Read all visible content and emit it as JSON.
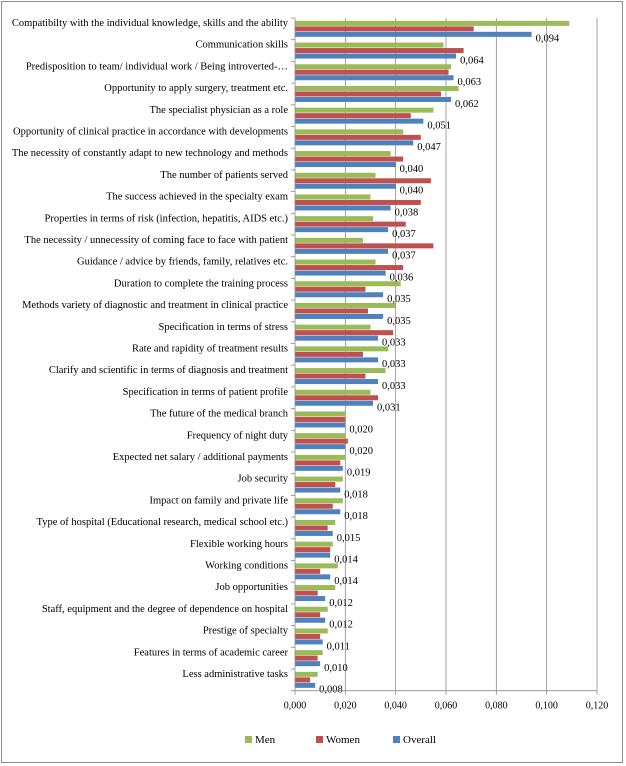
{
  "chart_data": {
    "type": "bar",
    "orientation": "horizontal",
    "categories": [
      "Compatibilty with the individual knowledge, skills and the ability",
      "Communication skills",
      "Predisposition to team/ individual work / Being introverted-…",
      "Opportunity to apply surgery, treatment etc.",
      "The specialist physician as a role",
      "Opportunity of clinical practice in accordance with developments",
      "The necessity of constantly adapt to new technology and methods",
      "The number of patients served",
      "The success achieved in the specialty exam",
      "Properties in terms of risk (infection, hepatitis, AIDS etc.)",
      "The necessity / unnecessity of coming face to face with patient",
      "Guidance / advice by friends, family, relatives etc.",
      "Duration to complete the training process",
      "Methods variety of diagnostic and treatment in clinical practice",
      "Specification in terms of stress",
      "Rate and rapidity of treatment results",
      "Clarify and scientific in terms of diagnosis and treatment",
      "Specification in terms of patient profile",
      "The future of the medical branch",
      "Frequency of night duty",
      "Expected net salary / additional payments",
      "Job security",
      "Impact on family and private life",
      "Type of hospital (Educational research, medical school etc.)",
      "Flexible working hours",
      "Working conditions",
      "Job opportunities",
      "Staff, equipment and the degree of dependence on hospital",
      "Prestige of specialty",
      "Features in terms of academic career",
      "Less administrative tasks"
    ],
    "series": [
      {
        "name": "Men",
        "color": "#9bbb59",
        "values": [
          0.109,
          0.059,
          0.062,
          0.065,
          0.055,
          0.043,
          0.038,
          0.032,
          0.03,
          0.031,
          0.027,
          0.032,
          0.042,
          0.04,
          0.03,
          0.037,
          0.036,
          0.03,
          0.02,
          0.02,
          0.02,
          0.019,
          0.019,
          0.016,
          0.015,
          0.017,
          0.016,
          0.013,
          0.013,
          0.011,
          0.009
        ]
      },
      {
        "name": "Women",
        "color": "#c0504d",
        "values": [
          0.071,
          0.067,
          0.061,
          0.058,
          0.046,
          0.05,
          0.043,
          0.054,
          0.05,
          0.044,
          0.055,
          0.043,
          0.028,
          0.029,
          0.039,
          0.027,
          0.028,
          0.033,
          0.02,
          0.021,
          0.018,
          0.016,
          0.015,
          0.013,
          0.014,
          0.01,
          0.009,
          0.01,
          0.01,
          0.009,
          0.006
        ]
      },
      {
        "name": "Overall",
        "color": "#4f81bd",
        "values": [
          0.094,
          0.064,
          0.063,
          0.062,
          0.051,
          0.047,
          0.04,
          0.04,
          0.038,
          0.037,
          0.037,
          0.036,
          0.035,
          0.035,
          0.033,
          0.033,
          0.033,
          0.031,
          0.02,
          0.02,
          0.019,
          0.018,
          0.018,
          0.015,
          0.014,
          0.014,
          0.012,
          0.012,
          0.011,
          0.01,
          0.008
        ]
      }
    ],
    "data_labels": [
      "0,094",
      "0,064",
      "0,063",
      "0,062",
      "0,051",
      "0,047",
      "0,040",
      "0,040",
      "0,038",
      "0,037",
      "0,037",
      "0,036",
      "0,035",
      "0,035",
      "0,033",
      "0,033",
      "0,033",
      "0,031",
      "0,020",
      "0,020",
      "0,019",
      "0,018",
      "0,018",
      "0,015",
      "0,014",
      "0,014",
      "0,012",
      "0,012",
      "0,011",
      "0,010",
      "0,008"
    ],
    "xlim": [
      0,
      0.12
    ],
    "ticks": [
      0,
      0.02,
      0.04,
      0.06,
      0.08,
      0.1,
      0.12
    ],
    "tick_labels": [
      "0,000",
      "0,020",
      "0,040",
      "0,060",
      "0,080",
      "0,100",
      "0,120"
    ],
    "grid": "vertical",
    "legend": "bottom",
    "title": "",
    "xlabel": "",
    "ylabel": ""
  }
}
